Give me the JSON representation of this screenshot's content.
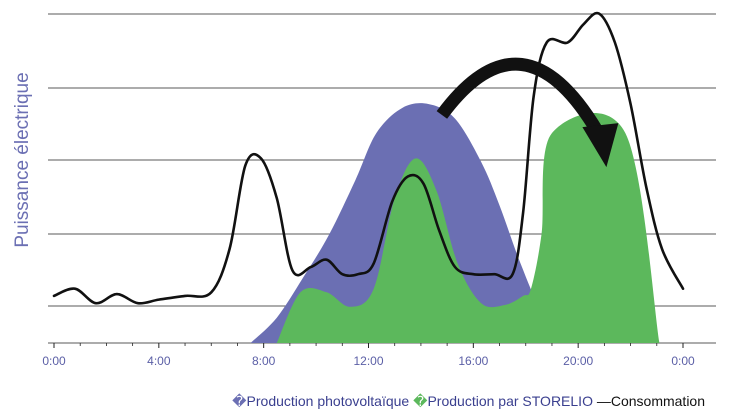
{
  "chart_data": {
    "type": "area",
    "title": "",
    "ylabel": "Puissance électrique",
    "xlabel": "",
    "x_ticks": [
      "0:00",
      "4:00",
      "8:00",
      "12:00",
      "16:00",
      "20:00",
      "0:00"
    ],
    "x_range_hours": [
      0,
      24
    ],
    "grid": true,
    "series": [
      {
        "name": "Production photovoltaïque",
        "kind": "area",
        "color": "#6b6fb3",
        "points": [
          [
            7.5,
            0
          ],
          [
            8.5,
            0.7
          ],
          [
            9.5,
            1.8
          ],
          [
            10.5,
            3.0
          ],
          [
            11.5,
            4.5
          ],
          [
            12.3,
            5.8
          ],
          [
            13.3,
            6.5
          ],
          [
            14.3,
            6.6
          ],
          [
            15.3,
            6.2
          ],
          [
            16.3,
            5.0
          ],
          [
            17.0,
            3.8
          ],
          [
            17.8,
            2.2
          ],
          [
            18.6,
            0.9
          ],
          [
            19.6,
            0.1
          ],
          [
            20.2,
            0
          ]
        ]
      },
      {
        "name": "Production par STORELIO",
        "kind": "area",
        "color": "#5cb85c",
        "points": [
          [
            8.5,
            0
          ],
          [
            9.4,
            1.4
          ],
          [
            10.4,
            1.4
          ],
          [
            11.3,
            1.0
          ],
          [
            12.2,
            1.5
          ],
          [
            13.0,
            4.0
          ],
          [
            13.8,
            5.1
          ],
          [
            14.6,
            4.2
          ],
          [
            15.4,
            2.2
          ],
          [
            16.3,
            1.1
          ],
          [
            17.2,
            1.05
          ],
          [
            17.9,
            1.3
          ],
          [
            18.2,
            1.5
          ],
          [
            18.6,
            3.0
          ],
          [
            19.0,
            5.8
          ],
          [
            21.8,
            5.8
          ],
          [
            23.1,
            0
          ]
        ]
      },
      {
        "name": "Consommation",
        "kind": "line",
        "color": "#111111",
        "points": [
          [
            0,
            1.3
          ],
          [
            0.8,
            1.5
          ],
          [
            1.6,
            1.1
          ],
          [
            2.4,
            1.35
          ],
          [
            3.2,
            1.1
          ],
          [
            4.0,
            1.2
          ],
          [
            5.0,
            1.3
          ],
          [
            6.0,
            1.4
          ],
          [
            6.7,
            2.6
          ],
          [
            7.3,
            4.9
          ],
          [
            7.9,
            5.1
          ],
          [
            8.5,
            4.0
          ],
          [
            9.1,
            2.0
          ],
          [
            9.8,
            2.1
          ],
          [
            10.4,
            2.3
          ],
          [
            11.0,
            1.9
          ],
          [
            11.6,
            1.9
          ],
          [
            12.2,
            2.2
          ],
          [
            12.9,
            3.9
          ],
          [
            13.5,
            4.6
          ],
          [
            14.1,
            4.4
          ],
          [
            14.7,
            3.1
          ],
          [
            15.3,
            2.1
          ],
          [
            16.0,
            1.9
          ],
          [
            16.8,
            1.9
          ],
          [
            17.5,
            1.9
          ],
          [
            17.9,
            3.6
          ],
          [
            18.3,
            6.8
          ],
          [
            18.8,
            8.3
          ],
          [
            19.6,
            8.3
          ],
          [
            20.2,
            8.8
          ],
          [
            20.8,
            9.1
          ],
          [
            21.4,
            8.3
          ],
          [
            22.0,
            6.6
          ],
          [
            22.6,
            4.3
          ],
          [
            23.2,
            2.6
          ],
          [
            24.0,
            1.5
          ]
        ]
      }
    ],
    "annotations": [
      {
        "type": "curved-arrow",
        "from": [
          14.8,
          6.3
        ],
        "to": [
          21.0,
          5.3
        ],
        "color": "#111111"
      }
    ],
    "legend": {
      "position": "bottom",
      "items": [
        {
          "glyph": "�",
          "label": "Production photovoltaïque",
          "color": "#6b6fb3"
        },
        {
          "glyph": "�",
          "label": "Production par STORELIO",
          "color": "#5cb85c"
        },
        {
          "glyph": "—",
          "label": "Consommation",
          "color": "#111111"
        }
      ]
    },
    "legend_spacer": " "
  }
}
